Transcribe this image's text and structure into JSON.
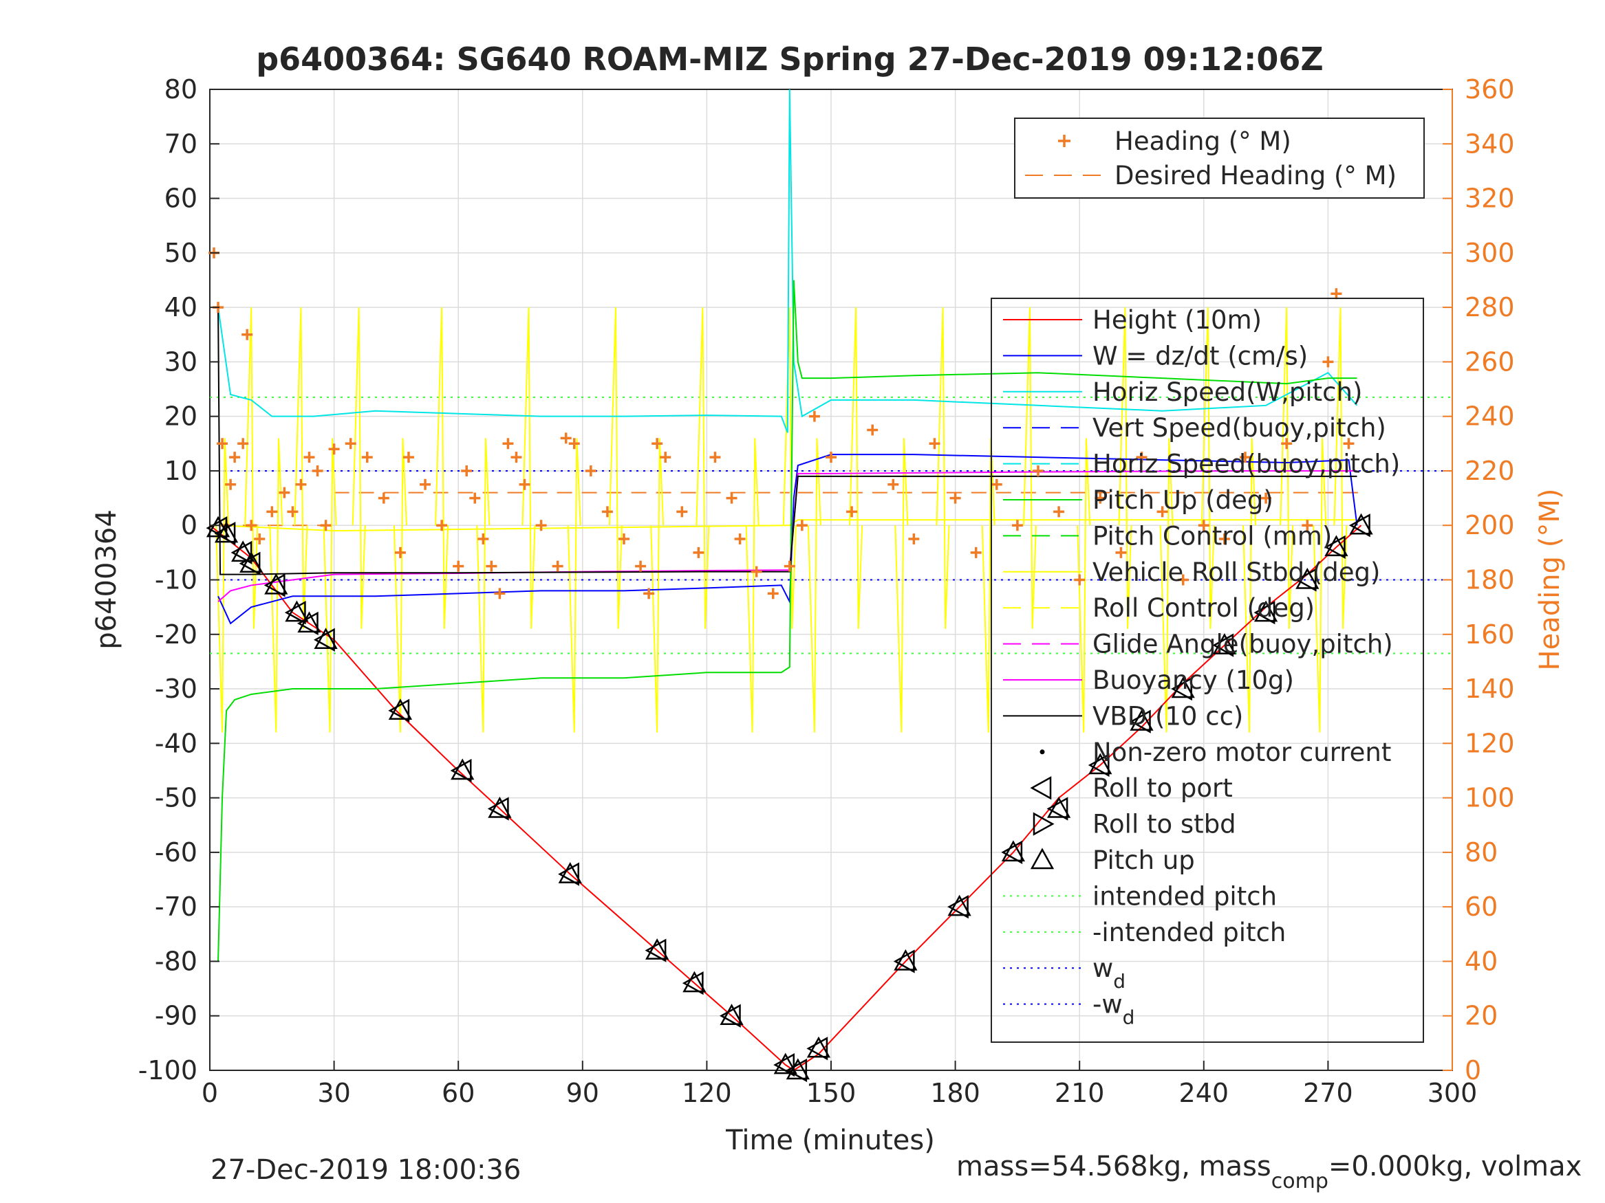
{
  "chart_data": {
    "type": "line",
    "title": "p6400364: SG640 ROAM-MIZ Spring 27-Dec-2019 09:12:06Z",
    "xlabel": "Time (minutes)",
    "ylabel": "p6400364",
    "y2label": "Heading (°M)",
    "xlim": [
      0,
      300
    ],
    "ylim": [
      -100,
      80
    ],
    "y2lim": [
      0,
      360
    ],
    "xticks": [
      0,
      30,
      60,
      90,
      120,
      150,
      180,
      210,
      240,
      270,
      300
    ],
    "yticks": [
      80,
      70,
      60,
      50,
      40,
      30,
      20,
      10,
      0,
      -10,
      -20,
      -30,
      -40,
      -50,
      -60,
      -70,
      -80,
      -90,
      -100
    ],
    "y2ticks": [
      360,
      340,
      320,
      300,
      280,
      260,
      240,
      220,
      200,
      180,
      160,
      140,
      120,
      100,
      80,
      60,
      40,
      20,
      0
    ],
    "grid": true,
    "footer_left": "27-Dec-2019 18:00:36",
    "footer_right": {
      "prefix": "mass=54.568kg, mass",
      "sub": "comp",
      "suffix": "=0.000kg, volmax"
    },
    "legend_heading": [
      {
        "label": "Heading (° M)",
        "color": "#f07b25",
        "style": "plus"
      },
      {
        "label": "Desired Heading (° M)",
        "color": "#f07b25",
        "style": "dash"
      }
    ],
    "legend_main": [
      {
        "label": "Height (10m)",
        "color": "#ff0000",
        "style": "solid"
      },
      {
        "label": "W = dz/dt (cm/s)",
        "color": "#0000ff",
        "style": "solid"
      },
      {
        "label": "Horiz Speed(W,pitch)",
        "color": "#00e5e5",
        "style": "solid"
      },
      {
        "label": "Vert Speed(buoy,pitch)",
        "color": "#0000ff",
        "style": "dash"
      },
      {
        "label": "Horiz Speed(buoy,pitch)",
        "color": "#00e5e5",
        "style": "dash"
      },
      {
        "label": "Pitch Up (deg)",
        "color": "#00dd00",
        "style": "solid"
      },
      {
        "label": "Pitch Control (mm)",
        "color": "#00dd00",
        "style": "dash"
      },
      {
        "label": "Vehicle Roll Stbd (deg)",
        "color": "#ffff00",
        "style": "solid"
      },
      {
        "label": "Roll Control (deg)",
        "color": "#ffff00",
        "style": "dash"
      },
      {
        "label": "Glide Angle(buoy,pitch)",
        "color": "#ff00ff",
        "style": "dash"
      },
      {
        "label": "Buoyancy (10g)",
        "color": "#ff00ff",
        "style": "solid"
      },
      {
        "label": "VBD (10 cc)",
        "color": "#000000",
        "style": "solid"
      },
      {
        "label": "Non-zero motor current",
        "color": "#000000",
        "style": "dot"
      },
      {
        "label": "Roll to port",
        "color": "#000000",
        "style": "tri-left"
      },
      {
        "label": "Roll to stbd",
        "color": "#000000",
        "style": "tri-right"
      },
      {
        "label": "Pitch up",
        "color": "#000000",
        "style": "tri-up"
      },
      {
        "label": "intended pitch",
        "color": "#33ff33",
        "style": "dotted"
      },
      {
        "label": "-intended pitch",
        "color": "#33ff33",
        "style": "dotted"
      },
      {
        "label": "w",
        "sub": "d",
        "color": "#0000ff",
        "style": "dotted"
      },
      {
        "label": "-w",
        "sub": "d",
        "color": "#0000ff",
        "style": "dotted"
      }
    ],
    "series": [
      {
        "name": "Height (10m)",
        "color": "#ff0000",
        "x": [
          0,
          10,
          20,
          30,
          45,
          60,
          70,
          87,
          108,
          117,
          126,
          139,
          141,
          147,
          168,
          181,
          194,
          205,
          215,
          225,
          235,
          245,
          255,
          265,
          272,
          278
        ],
        "y": [
          0,
          -6,
          -16,
          -21,
          -34,
          -45,
          -52,
          -64,
          -78,
          -84,
          -90,
          -99,
          -100,
          -97,
          -80,
          -70,
          -60,
          -50,
          -44,
          -37,
          -29,
          -22,
          -15,
          -9,
          -4,
          0
        ]
      },
      {
        "name": "W = dz/dt (cm/s)",
        "color": "#0000ff",
        "x": [
          2,
          5,
          10,
          20,
          40,
          60,
          80,
          100,
          120,
          138,
          140,
          141,
          142,
          150,
          170,
          200,
          230,
          260,
          275,
          277
        ],
        "y": [
          -13,
          -18,
          -15,
          -13,
          -13,
          -12.5,
          -12,
          -12,
          -11.5,
          -11,
          -14,
          5,
          11,
          13,
          13,
          12.5,
          12,
          11.5,
          12,
          0
        ]
      },
      {
        "name": "Horiz Speed(W,pitch)",
        "color": "#00e5e5",
        "x": [
          2,
          5,
          10,
          15,
          25,
          40,
          60,
          80,
          100,
          120,
          138,
          139.5,
          140,
          141,
          143,
          150,
          170,
          200,
          230,
          255,
          270,
          277
        ],
        "y": [
          40,
          24,
          23,
          20,
          20,
          21,
          20.5,
          20,
          20,
          20.2,
          20,
          17,
          80,
          30,
          20,
          23,
          23,
          22,
          21,
          22,
          28,
          22
        ]
      },
      {
        "name": "Pitch Up (deg)",
        "color": "#00dd00",
        "x": [
          2,
          3,
          4,
          6,
          10,
          20,
          40,
          60,
          80,
          100,
          120,
          138,
          140,
          141,
          142,
          143,
          150,
          170,
          200,
          230,
          260,
          270,
          277
        ],
        "y": [
          -80,
          -50,
          -34,
          -32,
          -31,
          -30,
          -30,
          -29,
          -28,
          -28,
          -27,
          -27,
          -26,
          45,
          30,
          27,
          27,
          27.5,
          28,
          27,
          26,
          27,
          27
        ]
      },
      {
        "name": "Buoyancy (10g)",
        "color": "#ff00ff",
        "x": [
          2,
          5,
          10,
          20,
          30,
          60,
          90,
          120,
          140,
          142,
          150,
          200,
          250,
          277
        ],
        "y": [
          -14,
          -12,
          -11,
          -10,
          -9,
          -8.8,
          -8.5,
          -8.3,
          -8.2,
          9.5,
          9.5,
          9.8,
          10,
          10
        ]
      },
      {
        "name": "VBD (10 cc)",
        "color": "#000000",
        "x": [
          2,
          2.5,
          10,
          30,
          60,
          90,
          120,
          140,
          142,
          160,
          200,
          240,
          277
        ],
        "y": [
          40,
          -9,
          -9,
          -8.7,
          -8.7,
          -8.6,
          -8.5,
          -8.5,
          9,
          9,
          9,
          9,
          9
        ]
      },
      {
        "name": "Heading (° M)",
        "color": "#f07b25",
        "x": [
          1,
          2,
          3,
          4,
          5,
          6,
          8,
          9,
          10,
          12,
          15,
          18,
          20,
          22,
          24,
          26,
          28,
          30,
          34,
          38,
          42,
          46,
          48,
          52,
          56,
          60,
          62,
          64,
          66,
          68,
          70,
          72,
          74,
          76,
          80,
          84,
          86,
          88,
          92,
          96,
          100,
          104,
          106,
          108,
          110,
          114,
          118,
          122,
          126,
          128,
          132,
          136,
          140,
          143,
          146,
          150,
          155,
          160,
          165,
          170,
          175,
          180,
          185,
          190,
          195,
          200,
          205,
          210,
          215,
          220,
          225,
          230,
          235,
          240,
          245,
          250,
          255,
          260,
          265,
          270,
          272,
          275
        ],
        "y": [
          300,
          280,
          230,
          200,
          215,
          225,
          230,
          270,
          200,
          195,
          205,
          212,
          205,
          215,
          225,
          220,
          200,
          228,
          230,
          225,
          210,
          190,
          225,
          215,
          200,
          185,
          220,
          210,
          195,
          185,
          175,
          230,
          225,
          215,
          200,
          185,
          232,
          230,
          220,
          205,
          195,
          185,
          175,
          230,
          225,
          205,
          190,
          225,
          210,
          195,
          183,
          175,
          185,
          200,
          240,
          225,
          205,
          235,
          215,
          195,
          230,
          210,
          190,
          215,
          200,
          220,
          205,
          180,
          210,
          190,
          225,
          205,
          180,
          200,
          195,
          225,
          210,
          230,
          200,
          260,
          285,
          230
        ]
      }
    ],
    "desired_heading_deg": [
      {
        "x": [
          2,
          30
        ],
        "y": 200
      },
      {
        "x": [
          30,
          140
        ],
        "y": 212
      },
      {
        "x": [
          142,
          278
        ],
        "y": 212
      }
    ],
    "roll_spikes": {
      "color": "#ffff00",
      "x": [
        3,
        10,
        16,
        22,
        29,
        36,
        46,
        56,
        66,
        77,
        88,
        98,
        108,
        119,
        131,
        140,
        146,
        156,
        167,
        177,
        188,
        198,
        211,
        221,
        231,
        241,
        251,
        260,
        268,
        273
      ],
      "y_low": -38,
      "y_high": 40,
      "baseline": 0
    },
    "pitch_up_markers": {
      "x": [
        2,
        4,
        8,
        10,
        16,
        21,
        24,
        28,
        46,
        61,
        70,
        87,
        108,
        117,
        126,
        139,
        142,
        147,
        168,
        181,
        194,
        205,
        215,
        225,
        235,
        245,
        255,
        265,
        272,
        278
      ],
      "y": [
        -0.5,
        -1.5,
        -5,
        -7,
        -11,
        -16,
        -18,
        -21,
        -34,
        -45,
        -52,
        -64,
        -78,
        -84,
        -90,
        -99,
        -100,
        -96,
        -80,
        -70,
        -60,
        -52,
        -44,
        -36,
        -30,
        -22,
        -16,
        -10,
        -4,
        0
      ]
    },
    "reference_lines": {
      "intended_pitch": 23.5,
      "neg_intended_pitch": -23.5,
      "w_d": 10,
      "neg_w_d": -10
    }
  }
}
